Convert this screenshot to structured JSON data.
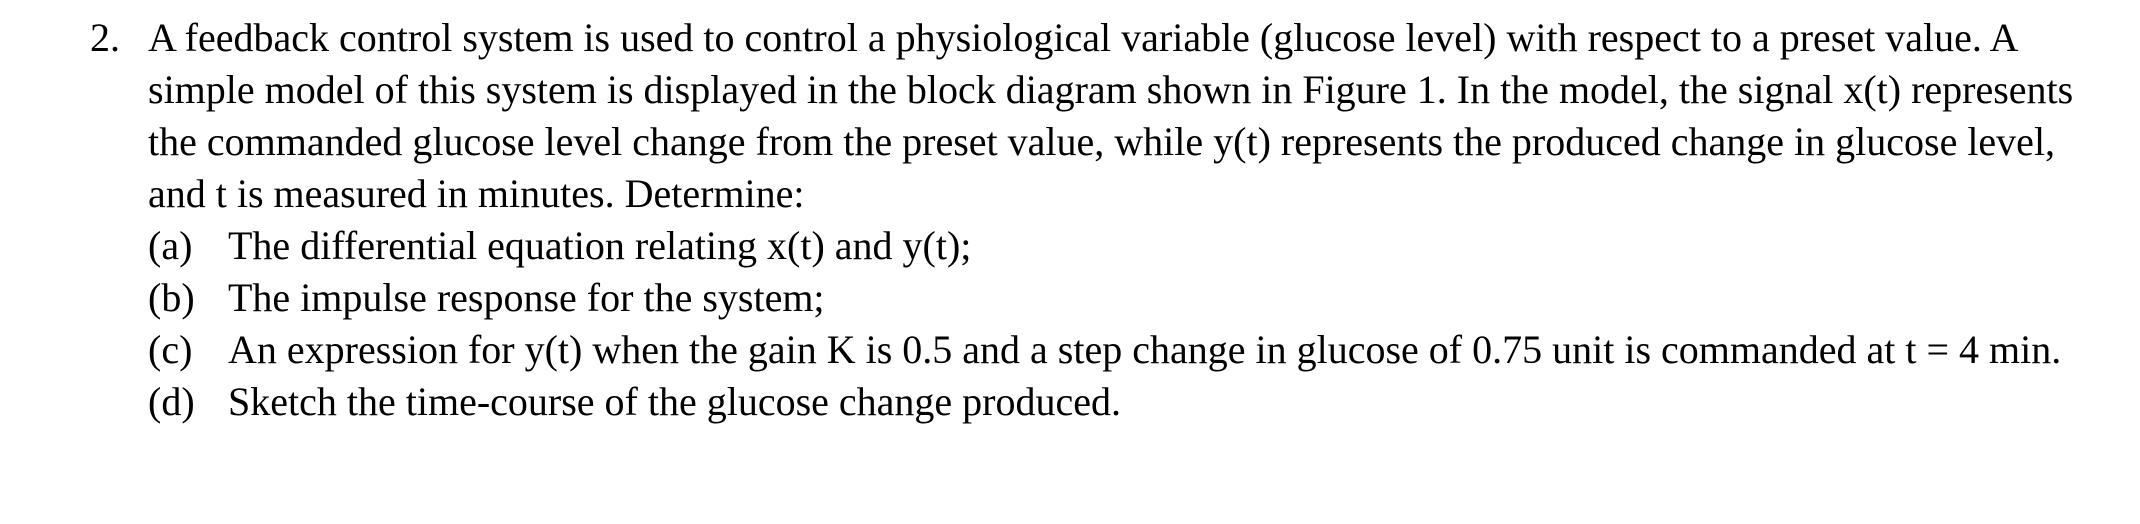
{
  "text_color": "#000000",
  "background_color": "#ffffff",
  "font_family": "Times New Roman",
  "font_size_pt": 30,
  "question": {
    "number": "2.",
    "intro": "A feedback control system is used to control a physiological variable (glucose level) with respect to a preset value. A simple model of this system is displayed in the block diagram shown in Figure 1. In the model, the signal x(t) represents the commanded glucose level change from the preset value, while y(t) represents the produced change in glucose level, and t is measured in minutes. Determine:",
    "parts": [
      {
        "label": "(a)",
        "text": "The differential equation relating x(t) and y(t);"
      },
      {
        "label": "(b)",
        "text": "The impulse response for the system;"
      },
      {
        "label": "(c)",
        "text": "An expression for y(t) when the gain K is 0.5 and a step change in glucose of 0.75 unit is commanded at t = 4 min."
      },
      {
        "label": "(d)",
        "text": "Sketch the time-course of the glucose change produced."
      }
    ]
  }
}
